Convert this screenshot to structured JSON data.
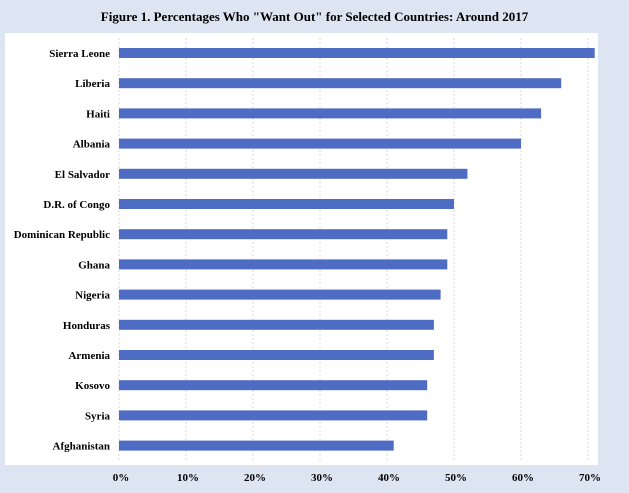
{
  "chart_data": {
    "type": "bar",
    "orientation": "horizontal",
    "title": "Figure 1. Percentages Who \"Want Out\" for Selected Countries: Around 2017",
    "categories": [
      "Sierra Leone",
      "Liberia",
      "Haiti",
      "Albania",
      "El Salvador",
      "D.R. of Congo",
      "Dominican Republic",
      "Ghana",
      "Nigeria",
      "Honduras",
      "Armenia",
      "Kosovo",
      "Syria",
      "Afghanistan"
    ],
    "values": [
      71,
      66,
      63,
      60,
      52,
      50,
      49,
      49,
      48,
      47,
      47,
      46,
      46,
      41
    ],
    "xlabel": "",
    "ylabel": "",
    "xlim": [
      0,
      72
    ],
    "xticks": [
      "0%",
      "10%",
      "20%",
      "30%",
      "40%",
      "50%",
      "60%",
      "70%"
    ],
    "grid": true,
    "bar_color": "#4f6cc4"
  }
}
